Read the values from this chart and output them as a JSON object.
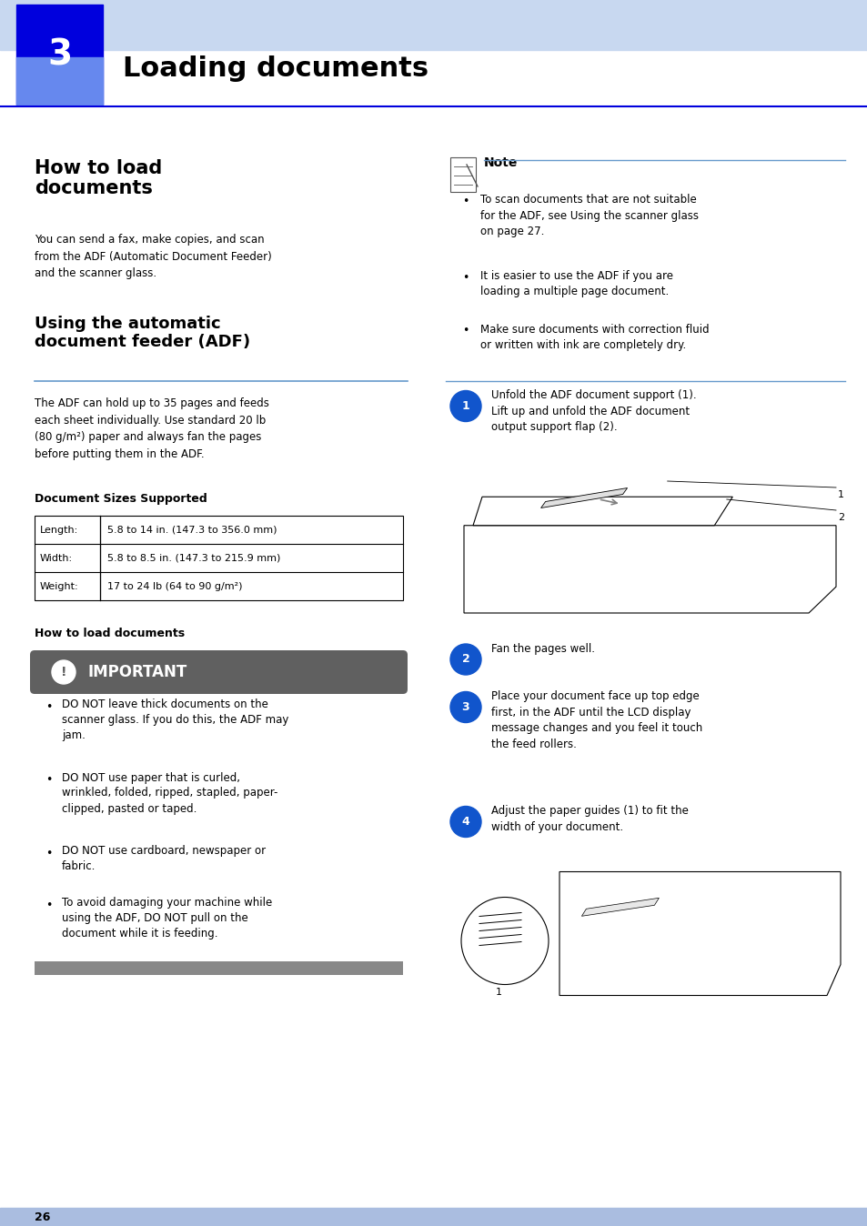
{
  "page_width": 9.54,
  "page_height": 13.48,
  "bg_color": "#ffffff",
  "header_bar_color": "#c8d8f0",
  "header_blue_color": "#0000dd",
  "chapter_sq_light": "#6688ee",
  "chapter_num": "3",
  "chapter_title": "Loading documents",
  "section1_title": "How to load\ndocuments",
  "section1_body": "You can send a fax, make copies, and scan\nfrom the ADF (Automatic Document Feeder)\nand the scanner glass.",
  "section2_title": "Using the automatic\ndocument feeder (ADF)",
  "section2_line_color": "#6699cc",
  "section2_body": "The ADF can hold up to 35 pages and feeds\neach sheet individually. Use standard 20 lb\n(80 g/m²) paper and always fan the pages\nbefore putting them in the ADF.",
  "doc_sizes_title": "Document Sizes Supported",
  "table_rows": [
    [
      "Length:",
      "5.8 to 14 in. (147.3 to 356.0 mm)"
    ],
    [
      "Width:",
      "5.8 to 8.5 in. (147.3 to 215.9 mm)"
    ],
    [
      "Weight:",
      "17 to 24 lb (64 to 90 g/m²)"
    ]
  ],
  "how_load_title": "How to load documents",
  "important_bg": "#606060",
  "important_text": "IMPORTANT",
  "important_bullets": [
    "DO NOT leave thick documents on the\nscanner glass. If you do this, the ADF may\njam.",
    "DO NOT use paper that is curled,\nwrinkled, folded, ripped, stapled, paper-\nclipped, pasted or taped.",
    "DO NOT use cardboard, newspaper or\nfabric.",
    "To avoid damaging your machine while\nusing the ADF, DO NOT pull on the\ndocument while it is feeding."
  ],
  "note_title": "Note",
  "note_line_color": "#6699cc",
  "note_bullets": [
    "To scan documents that are not suitable\nfor the ADF, see {italic}Using the scanner glass{/italic}\non page 27.",
    "It is easier to use the ADF if you are\nloading a multiple page document.",
    "Make sure documents with correction fluid\nor written with ink are completely dry."
  ],
  "steps": [
    "Unfold the ADF document support (1).\nLift up and unfold the ADF document\noutput support flap (2).",
    "Fan the pages well.",
    "Place your document {italic}face up top edge\nfirst{/italic}, in the ADF until the LCD display\nmessage changes and you feel it touch\nthe feed rollers.",
    "Adjust the paper guides (1) to fit the\nwidth of your document."
  ],
  "step_circle_color": "#1155cc",
  "page_number": "26",
  "footer_bar_color": "#aabde0"
}
